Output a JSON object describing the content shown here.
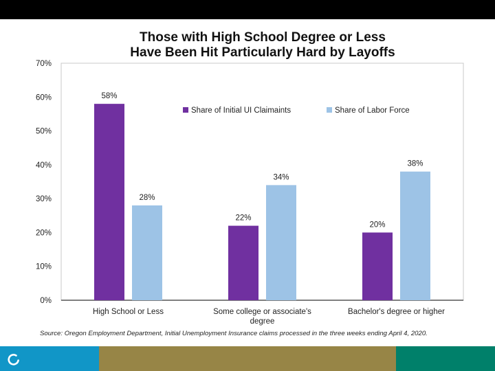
{
  "chart_data": {
    "type": "bar",
    "title": "Those with High School Degree or Less\nHave Been Hit Particularly Hard by Layoffs",
    "categories": [
      "High School or Less",
      "Some college or associate's degree",
      "Bachelor's degree or higher"
    ],
    "series": [
      {
        "name": "Share of Initial UI Claimaints",
        "values": [
          58,
          22,
          20
        ],
        "color": "#7030a0",
        "labels": [
          "58%",
          "22%",
          "20%"
        ]
      },
      {
        "name": "Share of Labor Force",
        "values": [
          28,
          34,
          38
        ],
        "color": "#9dc3e6",
        "labels": [
          "28%",
          "34%",
          "38%"
        ]
      }
    ],
    "ylim": [
      0,
      70
    ],
    "yticks": [
      "0%",
      "10%",
      "20%",
      "30%",
      "40%",
      "50%",
      "60%",
      "70%"
    ],
    "grid": false,
    "legend_position": "top-right"
  },
  "source": "Source: Oregon Employment Department, Initial Unemployment Insurance claims processed in the three weeks ending April 4, 2020.",
  "footer": {
    "colors": [
      "#1196c7",
      "#978546",
      "#00806a"
    ],
    "logo_icon": "circle-arc-icon"
  }
}
